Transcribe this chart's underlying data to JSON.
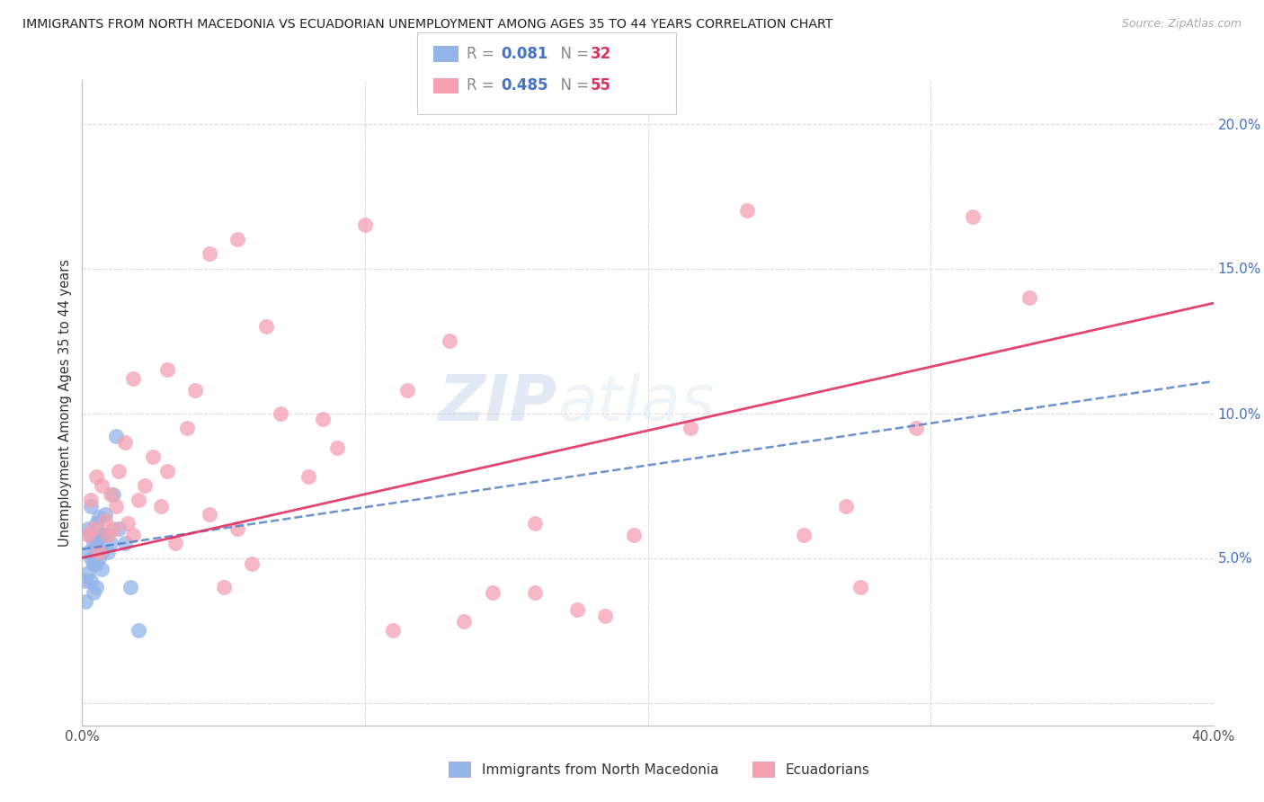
{
  "title": "IMMIGRANTS FROM NORTH MACEDONIA VS ECUADORIAN UNEMPLOYMENT AMONG AGES 35 TO 44 YEARS CORRELATION CHART",
  "source": "Source: ZipAtlas.com",
  "ylabel": "Unemployment Among Ages 35 to 44 years",
  "xlim": [
    0.0,
    0.4
  ],
  "ylim": [
    -0.008,
    0.215
  ],
  "yticks": [
    0.0,
    0.05,
    0.1,
    0.15,
    0.2
  ],
  "ytick_labels": [
    "",
    "5.0%",
    "10.0%",
    "15.0%",
    "20.0%"
  ],
  "xticks": [
    0.0,
    0.1,
    0.2,
    0.3,
    0.4
  ],
  "xtick_labels": [
    "0.0%",
    "",
    "",
    "",
    "40.0%"
  ],
  "blue_color": "#92b4e8",
  "pink_color": "#f4a0b0",
  "line_blue_color": "#5080c8",
  "line_pink_color": "#e03060",
  "watermark_zip": "ZIP",
  "watermark_atlas": "atlas",
  "R_blue": "0.081",
  "N_blue": "32",
  "R_pink": "0.485",
  "N_pink": "55",
  "legend_label_blue": "Immigrants from North Macedonia",
  "legend_label_pink": "Ecuadorians",
  "blue_x": [
    0.001,
    0.001,
    0.002,
    0.002,
    0.002,
    0.003,
    0.003,
    0.003,
    0.003,
    0.004,
    0.004,
    0.004,
    0.005,
    0.005,
    0.005,
    0.005,
    0.006,
    0.006,
    0.006,
    0.007,
    0.007,
    0.007,
    0.008,
    0.008,
    0.009,
    0.01,
    0.011,
    0.012,
    0.013,
    0.015,
    0.017,
    0.02
  ],
  "blue_y": [
    0.042,
    0.035,
    0.06,
    0.052,
    0.045,
    0.068,
    0.058,
    0.05,
    0.042,
    0.055,
    0.048,
    0.038,
    0.062,
    0.055,
    0.048,
    0.04,
    0.064,
    0.057,
    0.05,
    0.058,
    0.052,
    0.046,
    0.065,
    0.058,
    0.052,
    0.055,
    0.072,
    0.092,
    0.06,
    0.055,
    0.04,
    0.025
  ],
  "pink_x": [
    0.002,
    0.003,
    0.004,
    0.005,
    0.006,
    0.007,
    0.008,
    0.009,
    0.01,
    0.011,
    0.012,
    0.013,
    0.015,
    0.016,
    0.018,
    0.02,
    0.022,
    0.025,
    0.028,
    0.03,
    0.033,
    0.037,
    0.04,
    0.045,
    0.05,
    0.055,
    0.06,
    0.07,
    0.08,
    0.09,
    0.1,
    0.115,
    0.13,
    0.145,
    0.16,
    0.175,
    0.195,
    0.215,
    0.235,
    0.255,
    0.275,
    0.295,
    0.315,
    0.335,
    0.018,
    0.03,
    0.045,
    0.065,
    0.085,
    0.11,
    0.135,
    0.16,
    0.185,
    0.055,
    0.27
  ],
  "pink_y": [
    0.058,
    0.07,
    0.06,
    0.078,
    0.052,
    0.075,
    0.063,
    0.058,
    0.072,
    0.06,
    0.068,
    0.08,
    0.09,
    0.062,
    0.058,
    0.07,
    0.075,
    0.085,
    0.068,
    0.08,
    0.055,
    0.095,
    0.108,
    0.065,
    0.04,
    0.06,
    0.048,
    0.1,
    0.078,
    0.088,
    0.165,
    0.108,
    0.125,
    0.038,
    0.062,
    0.032,
    0.058,
    0.095,
    0.17,
    0.058,
    0.04,
    0.095,
    0.168,
    0.14,
    0.112,
    0.115,
    0.155,
    0.13,
    0.098,
    0.025,
    0.028,
    0.038,
    0.03,
    0.16,
    0.068
  ]
}
